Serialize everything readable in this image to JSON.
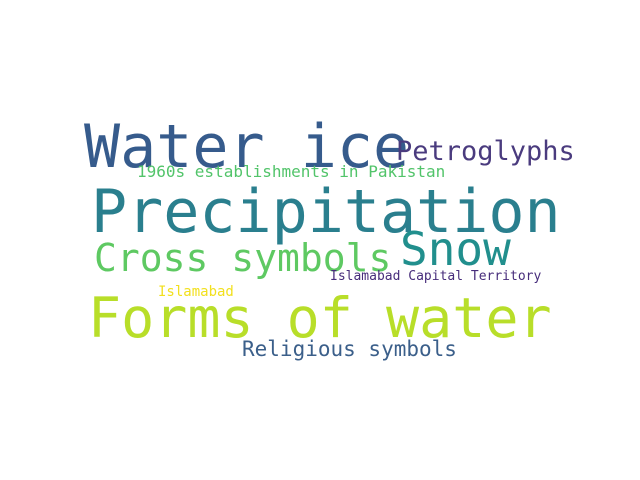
{
  "words": [
    {
      "text": "Water ice",
      "color": "#365b8c"
    },
    {
      "text": "Petroglyphs",
      "color": "#4a3b7e"
    },
    {
      "text": "1960s establishments in Pakistan",
      "color": "#52c46a"
    },
    {
      "text": "Precipitation",
      "color": "#2a7f8e"
    },
    {
      "text": "Snow",
      "color": "#218f8d"
    },
    {
      "text": "Cross symbols",
      "color": "#5ec962"
    },
    {
      "text": "Islamabad Capital Territory",
      "color": "#472d7b"
    },
    {
      "text": "Islamabad",
      "color": "#f2e01e"
    },
    {
      "text": "Forms of water",
      "color": "#b8de29"
    },
    {
      "text": "Religious symbols",
      "color": "#3b5f8a"
    }
  ]
}
